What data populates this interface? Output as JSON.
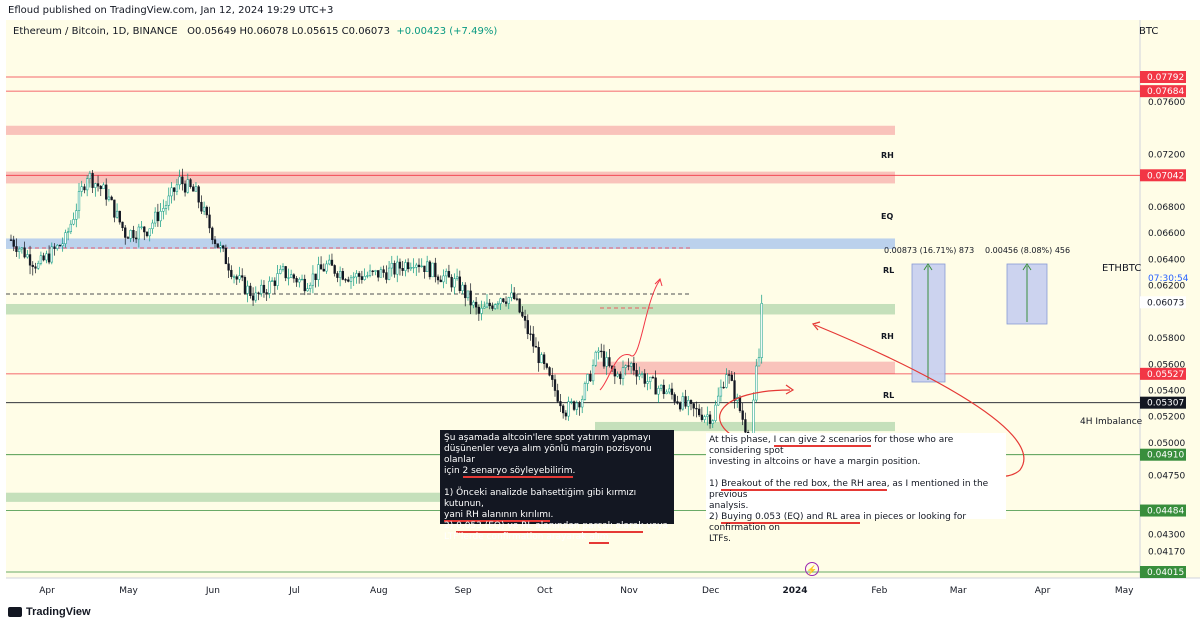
{
  "publisher": "Efloud published on TradingView.com, Jan 12, 2024 19:29 UTC+3",
  "info": {
    "symbol": "Ethereum / Bitcoin, 1D, BINANCE",
    "ohlc": "O0.05649 H0.06078 L0.05615 C0.06073",
    "change": "+0.00423 (+7.49%)"
  },
  "currency": "BTC",
  "footer": "TradingView",
  "colors": {
    "background": "#fffde7",
    "up": "#089981",
    "down": "#131722",
    "red_zone": "#f8b4b0",
    "green_zone": "#b7d8b0",
    "blue_zone": "#aac6ee",
    "red_label": "#f23645",
    "green_label": "#388e3c"
  },
  "chart_data": {
    "type": "candlestick",
    "ylim": [
      0.0397,
      0.0795
    ],
    "price_ticks": [
      "0.07600",
      "0.07200",
      "0.06800",
      "0.06600",
      "0.06400",
      "0.06200",
      "0.05800",
      "0.05600",
      "0.05400",
      "0.05200",
      "0.05000",
      "0.04750",
      "0.04500",
      "0.04300",
      "0.04170"
    ],
    "price_tick_values": [
      0.076,
      0.072,
      0.068,
      0.066,
      0.064,
      0.062,
      0.058,
      0.056,
      0.054,
      0.052,
      0.05,
      0.0475,
      0.045,
      0.043,
      0.0417
    ],
    "time_ticks": [
      "Apr",
      "May",
      "Jun",
      "Jul",
      "Aug",
      "Sep",
      "Oct",
      "Nov",
      "Dec",
      "2024",
      "Feb",
      "Mar",
      "Apr",
      "May"
    ],
    "time_tick_days": [
      0,
      30,
      61,
      91,
      122,
      153,
      183,
      214,
      244,
      275,
      306,
      335,
      366,
      396
    ],
    "series": [
      {
        "day": 0,
        "value": 0.0655
      },
      {
        "day": 10,
        "value": 0.0635
      },
      {
        "day": 20,
        "value": 0.0655
      },
      {
        "day": 28,
        "value": 0.0705
      },
      {
        "day": 35,
        "value": 0.069
      },
      {
        "day": 42,
        "value": 0.066
      },
      {
        "day": 50,
        "value": 0.0663
      },
      {
        "day": 58,
        "value": 0.0685
      },
      {
        "day": 62,
        "value": 0.07
      },
      {
        "day": 68,
        "value": 0.069
      },
      {
        "day": 75,
        "value": 0.0655
      },
      {
        "day": 83,
        "value": 0.0625
      },
      {
        "day": 90,
        "value": 0.0611
      },
      {
        "day": 100,
        "value": 0.063
      },
      {
        "day": 108,
        "value": 0.0622
      },
      {
        "day": 116,
        "value": 0.0635
      },
      {
        "day": 125,
        "value": 0.0627
      },
      {
        "day": 133,
        "value": 0.0628
      },
      {
        "day": 141,
        "value": 0.0632
      },
      {
        "day": 148,
        "value": 0.064
      },
      {
        "day": 156,
        "value": 0.063
      },
      {
        "day": 165,
        "value": 0.062
      },
      {
        "day": 172,
        "value": 0.0598
      },
      {
        "day": 180,
        "value": 0.0612
      },
      {
        "day": 185,
        "value": 0.061
      },
      {
        "day": 192,
        "value": 0.0575
      },
      {
        "day": 198,
        "value": 0.0548
      },
      {
        "day": 204,
        "value": 0.0525
      },
      {
        "day": 210,
        "value": 0.0535
      },
      {
        "day": 216,
        "value": 0.057
      },
      {
        "day": 222,
        "value": 0.055
      },
      {
        "day": 228,
        "value": 0.056
      },
      {
        "day": 235,
        "value": 0.0545
      },
      {
        "day": 242,
        "value": 0.0538
      },
      {
        "day": 250,
        "value": 0.0525
      },
      {
        "day": 258,
        "value": 0.052
      },
      {
        "day": 263,
        "value": 0.0555
      },
      {
        "day": 268,
        "value": 0.0525
      },
      {
        "day": 272,
        "value": 0.05
      },
      {
        "day": 274,
        "value": 0.0555
      },
      {
        "day": 275,
        "value": 0.0565
      },
      {
        "day": 276,
        "value": 0.0607
      }
    ],
    "horizontal_lines": [
      {
        "label": "0.07792",
        "value": 0.07792,
        "color": "#f23645"
      },
      {
        "label": "0.07684",
        "value": 0.07684,
        "color": "#f23645"
      },
      {
        "label": "0.07042",
        "value": 0.07042,
        "color": "#f23645"
      },
      {
        "label": "0.06073",
        "value": 0.06073,
        "color": "#ffffff"
      },
      {
        "label": "0.05527",
        "value": 0.05527,
        "color": "#f23645"
      },
      {
        "label": "0.05307",
        "value": 0.05307,
        "color": "#131722"
      },
      {
        "label": "0.04910",
        "value": 0.0491,
        "color": "#388e3c"
      },
      {
        "label": "0.04484",
        "value": 0.04484,
        "color": "#388e3c"
      },
      {
        "label": "0.04015",
        "value": 0.04015,
        "color": "#388e3c"
      }
    ],
    "zones": [
      {
        "label": "",
        "from": 0.0735,
        "to": 0.0742,
        "color": "red"
      },
      {
        "label": "RH",
        "from": 0.0698,
        "to": 0.0707,
        "color": "red"
      },
      {
        "label": "EQ",
        "from": 0.0648,
        "to": 0.0656,
        "color": "blue"
      },
      {
        "label": "RL",
        "from": 0.0598,
        "to": 0.0606,
        "color": "green"
      },
      {
        "label": "RH",
        "from": 0.0553,
        "to": 0.0562,
        "color": "red"
      },
      {
        "label": "RL",
        "from": 0.0509,
        "to": 0.0516,
        "color": "green"
      },
      {
        "label": "",
        "from": 0.0455,
        "to": 0.0462,
        "color": "green"
      }
    ],
    "price_label": {
      "symbol": "ETHBTC",
      "value": "0.06073",
      "countdown": "07:30:54"
    },
    "imbalance_label": "4H Imbalance",
    "measurements": [
      "0.00873 (16.71%) 873",
      "0.00456 (8.08%) 456"
    ]
  },
  "notes": {
    "tr": {
      "p1_pre": "Şu aşamada altcoin'lere spot yatırım yapmayı\ndüşünenler veya alım yönlü margin pozisyonu olanlar\niçin ",
      "p1_u": "2 senaryo söyleyebilirim",
      "p1_post": ".",
      "p2_a": "1) Önceki analizde bahsettiğim gibi kırmızı kutunun,\n",
      "p2_u": "yani RH alanının kırılımı",
      "p2_b": ".",
      "p3_a": "2) ",
      "p3_u1": "0.053 (EQ) ve RL alanından parçalı olarak",
      "p3_b": " veya\nLTF'lerde confirmation arayarak ",
      "p3_u2": "alım",
      "p3_c": "."
    },
    "en": {
      "p1_a": "At this phase, ",
      "p1_u": "I can give 2 scenarios",
      "p1_b": " for those who are considering spot\ninvesting in altcoins or have a margin position.",
      "p2_a": "1) ",
      "p2_u": "Breakout of the red box, the RH area",
      "p2_b": ", as I mentioned in the previous\nanalysis.",
      "p3_a": "2) ",
      "p3_u": "Buying 0.053 (EQ) and RL area",
      "p3_b": " in pieces or looking for confirmation on\nLTFs."
    }
  }
}
